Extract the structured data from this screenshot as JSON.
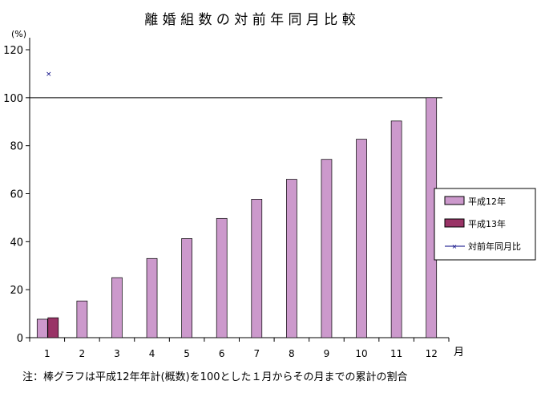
{
  "chart_data": {
    "type": "bar",
    "title": "離 婚 組 数 の 対 前 年 同 月 比 較",
    "ylabel": "(%)",
    "xlabel": "月",
    "categories": [
      "1",
      "2",
      "3",
      "4",
      "5",
      "6",
      "7",
      "8",
      "9",
      "10",
      "11",
      "12"
    ],
    "yticks": [
      "0",
      "20",
      "40",
      "60",
      "80",
      "100",
      "120"
    ],
    "ylim": [
      0,
      120
    ],
    "reference_line": 100,
    "series": [
      {
        "name": "平成12年",
        "type": "bar",
        "color": "#cc99cc",
        "values": [
          7.7,
          15.3,
          25,
          33,
          41.3,
          49.7,
          57.7,
          66,
          74.3,
          82.7,
          90.3,
          100
        ]
      },
      {
        "name": "平成13年",
        "type": "bar",
        "color": "#993366",
        "values": [
          8.3,
          null,
          null,
          null,
          null,
          null,
          null,
          null,
          null,
          null,
          null,
          null
        ]
      },
      {
        "name": "対前年同月比",
        "type": "scatter",
        "marker": "x",
        "color": "#000080",
        "values": [
          110,
          null,
          null,
          null,
          null,
          null,
          null,
          null,
          null,
          null,
          null,
          null
        ]
      }
    ],
    "legend": "right",
    "grid": false,
    "note": "注：棒グラフは平成12年年計(概数)を100とした１月からその月までの累計の割合"
  }
}
